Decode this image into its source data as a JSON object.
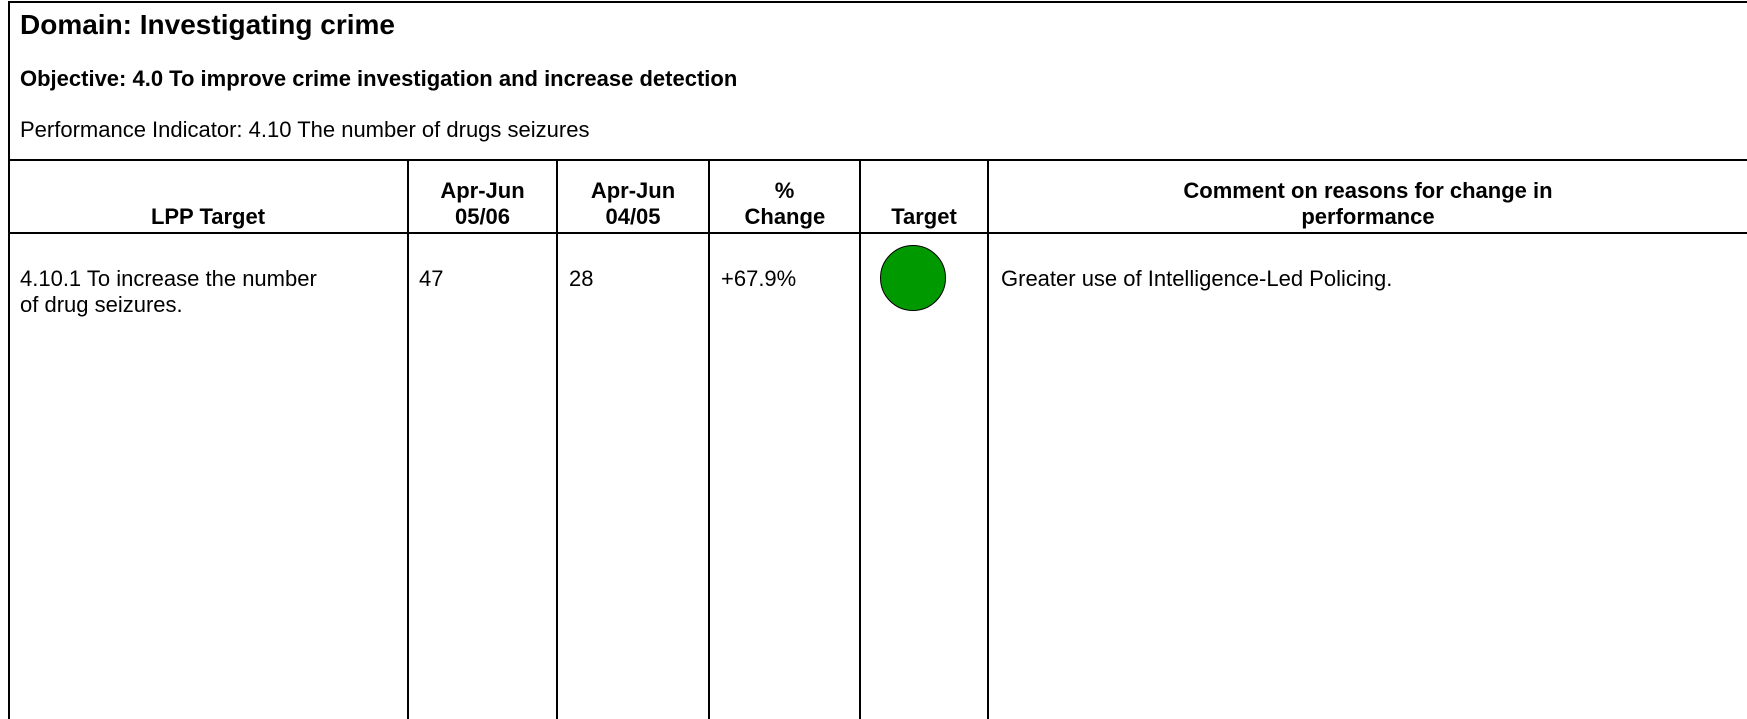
{
  "header": {
    "domain": "Domain: Investigating crime",
    "objective": "Objective: 4.0 To improve crime investigation and increase detection",
    "indicator": "Performance Indicator: 4.10 The number of drugs seizures"
  },
  "table": {
    "headers": [
      "LPP Target",
      "Apr-Jun 05/06",
      "Apr-Jun 04/05",
      "% Change",
      "Target",
      "Comment on reasons for change in performance"
    ],
    "rows": [
      {
        "lpp_target": "4.10.1 To increase the number of drug seizures.",
        "current": 47,
        "previous": 28,
        "change": "+67.9%",
        "comment": "Greater use of Intelligence-Led Policing."
      }
    ]
  }
}
